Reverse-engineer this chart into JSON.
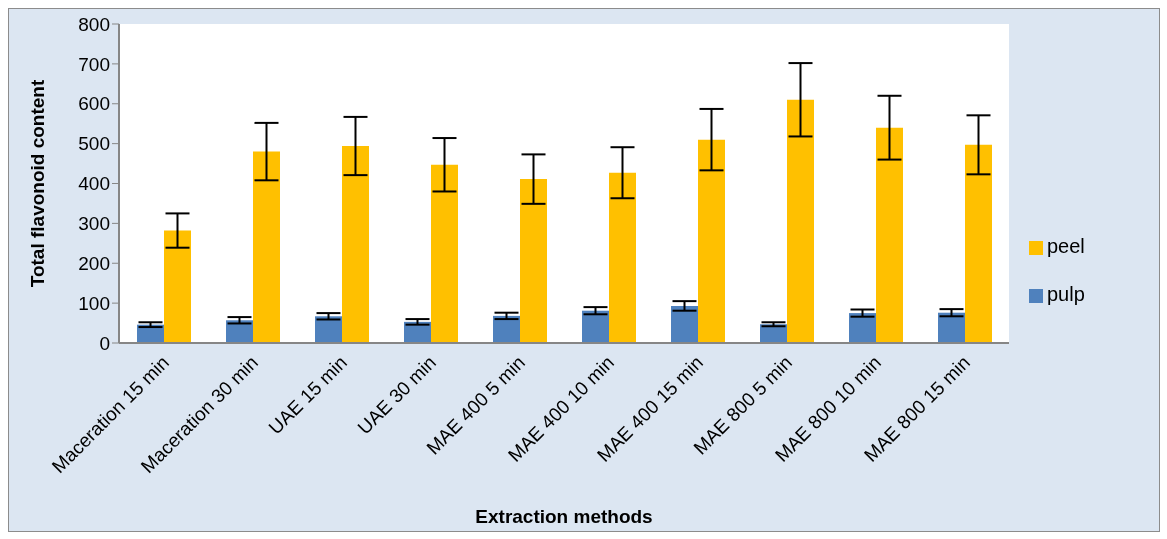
{
  "chart_data": {
    "type": "bar",
    "xlabel": "Extraction methods",
    "ylabel": "Total flavonoid content",
    "categories": [
      "Maceration 15 min",
      "Maceration 30 min",
      "UAE 15 min",
      "UAE 30 min",
      "MAE 400 5 min",
      "MAE 400 10 min",
      "MAE 400 15 min",
      "MAE 800 5 min",
      "MAE 800 10 min",
      "MAE 800 15 min"
    ],
    "series": [
      {
        "name": "pulp",
        "color": "#4f81bd",
        "values": [
          46,
          57,
          67,
          53,
          68,
          81,
          93,
          47,
          75,
          76
        ],
        "errors": [
          6,
          8,
          8,
          7,
          8,
          9,
          12,
          5,
          9,
          9
        ]
      },
      {
        "name": "peel",
        "color": "#ffc000",
        "values": [
          282,
          480,
          494,
          447,
          411,
          427,
          510,
          610,
          540,
          497
        ],
        "errors": [
          43,
          72,
          73,
          67,
          62,
          64,
          77,
          92,
          80,
          74
        ]
      }
    ],
    "ylim": [
      0,
      800
    ],
    "yticks": [
      0,
      100,
      200,
      300,
      400,
      500,
      600,
      700,
      800
    ],
    "legend": "right"
  }
}
